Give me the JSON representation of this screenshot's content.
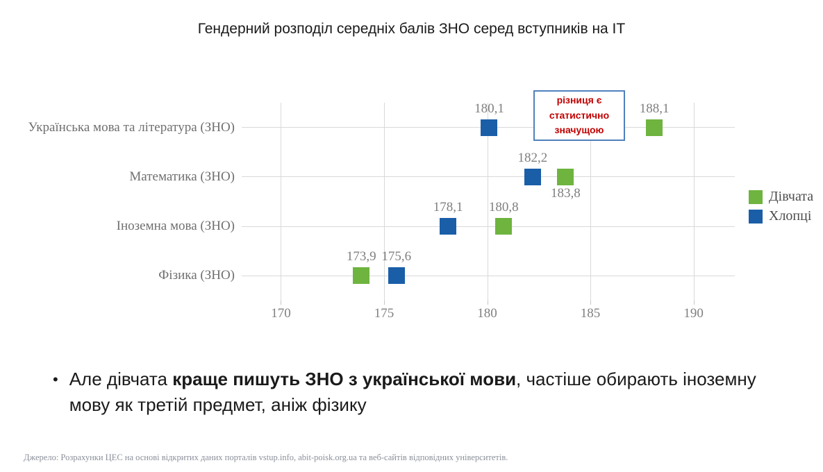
{
  "title": "Гендерний розподіл середніх балів ЗНО серед вступників на ІТ",
  "colors": {
    "girls": "#6eb43f",
    "boys": "#1a5ea8",
    "grid": "#d9d9d9",
    "annotation_border": "#4f81bd",
    "annotation_text": "#c00000",
    "axis_text": "#7f7f7f"
  },
  "chart_data": {
    "type": "scatter",
    "title": "Гендерний розподіл середніх балів ЗНО серед вступників на ІТ",
    "categories": [
      "Українська мова та література (ЗНО)",
      "Математика (ЗНО)",
      "Іноземна мова (ЗНО)",
      "Фізика (ЗНО)"
    ],
    "series": [
      {
        "name": "Дівчата",
        "color_key": "girls",
        "values": [
          188.1,
          183.8,
          180.8,
          173.9
        ],
        "value_labels": [
          "188,1",
          "183,8",
          "180,8",
          "173,9"
        ],
        "label_side": [
          "above",
          "below",
          "above",
          "above"
        ]
      },
      {
        "name": "Хлопці",
        "color_key": "boys",
        "values": [
          180.1,
          182.2,
          178.1,
          175.6
        ],
        "value_labels": [
          "180,1",
          "182,2",
          "178,1",
          "175,6"
        ],
        "label_side": [
          "above",
          "above",
          "above",
          "above"
        ]
      }
    ],
    "x_ticks": [
      170,
      175,
      180,
      185,
      190
    ],
    "x_tick_labels": [
      "170",
      "175",
      "180",
      "185",
      "190"
    ],
    "x_range": [
      168.1,
      192.0
    ],
    "grid": "on",
    "legend_position": "right"
  },
  "annotation": {
    "text": "різниця є статистично значущою"
  },
  "bullet": {
    "marker": "•",
    "pre": "Але дівчата ",
    "bold": "краще пишуть ЗНО з української мови",
    "post": ", частіше обирають іноземну мову як третій предмет, аніж фізику"
  },
  "source": "Джерело: Розрахунки ЦЕС на основі відкритих даних порталів vstup.info, abit-poisk.org.ua та веб-сайтів відповідних університетів."
}
